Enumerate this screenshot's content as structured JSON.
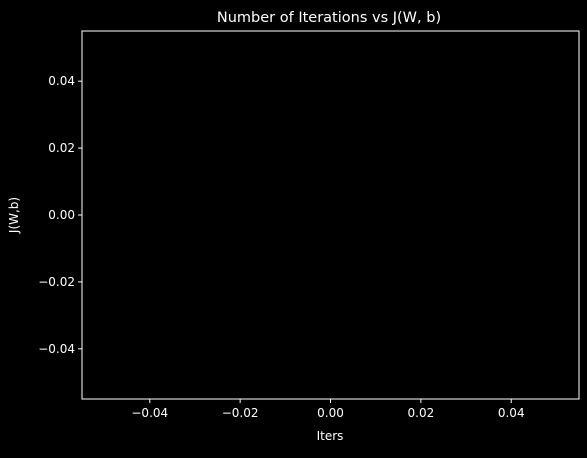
{
  "chart_data": {
    "type": "line",
    "title": "Number of Iterations vs J(W, b)",
    "xlabel": "Iters",
    "ylabel": "J(W,b)",
    "xlim": [
      -0.055,
      0.055
    ],
    "ylim": [
      -0.055,
      0.055
    ],
    "xticks": [
      {
        "value": -0.04,
        "label": "−0.04"
      },
      {
        "value": -0.02,
        "label": "−0.02"
      },
      {
        "value": 0.0,
        "label": "0.00"
      },
      {
        "value": 0.02,
        "label": "0.02"
      },
      {
        "value": 0.04,
        "label": "0.04"
      }
    ],
    "yticks": [
      {
        "value": -0.04,
        "label": "−0.04"
      },
      {
        "value": -0.02,
        "label": "−0.02"
      },
      {
        "value": 0.0,
        "label": "0.00"
      },
      {
        "value": 0.02,
        "label": "0.02"
      },
      {
        "value": 0.04,
        "label": "0.04"
      }
    ],
    "series": [
      {
        "x": [],
        "y": []
      }
    ],
    "grid": false,
    "colors": {
      "background": "#000000",
      "axes": "#ffffff",
      "text": "#ffffff"
    }
  }
}
